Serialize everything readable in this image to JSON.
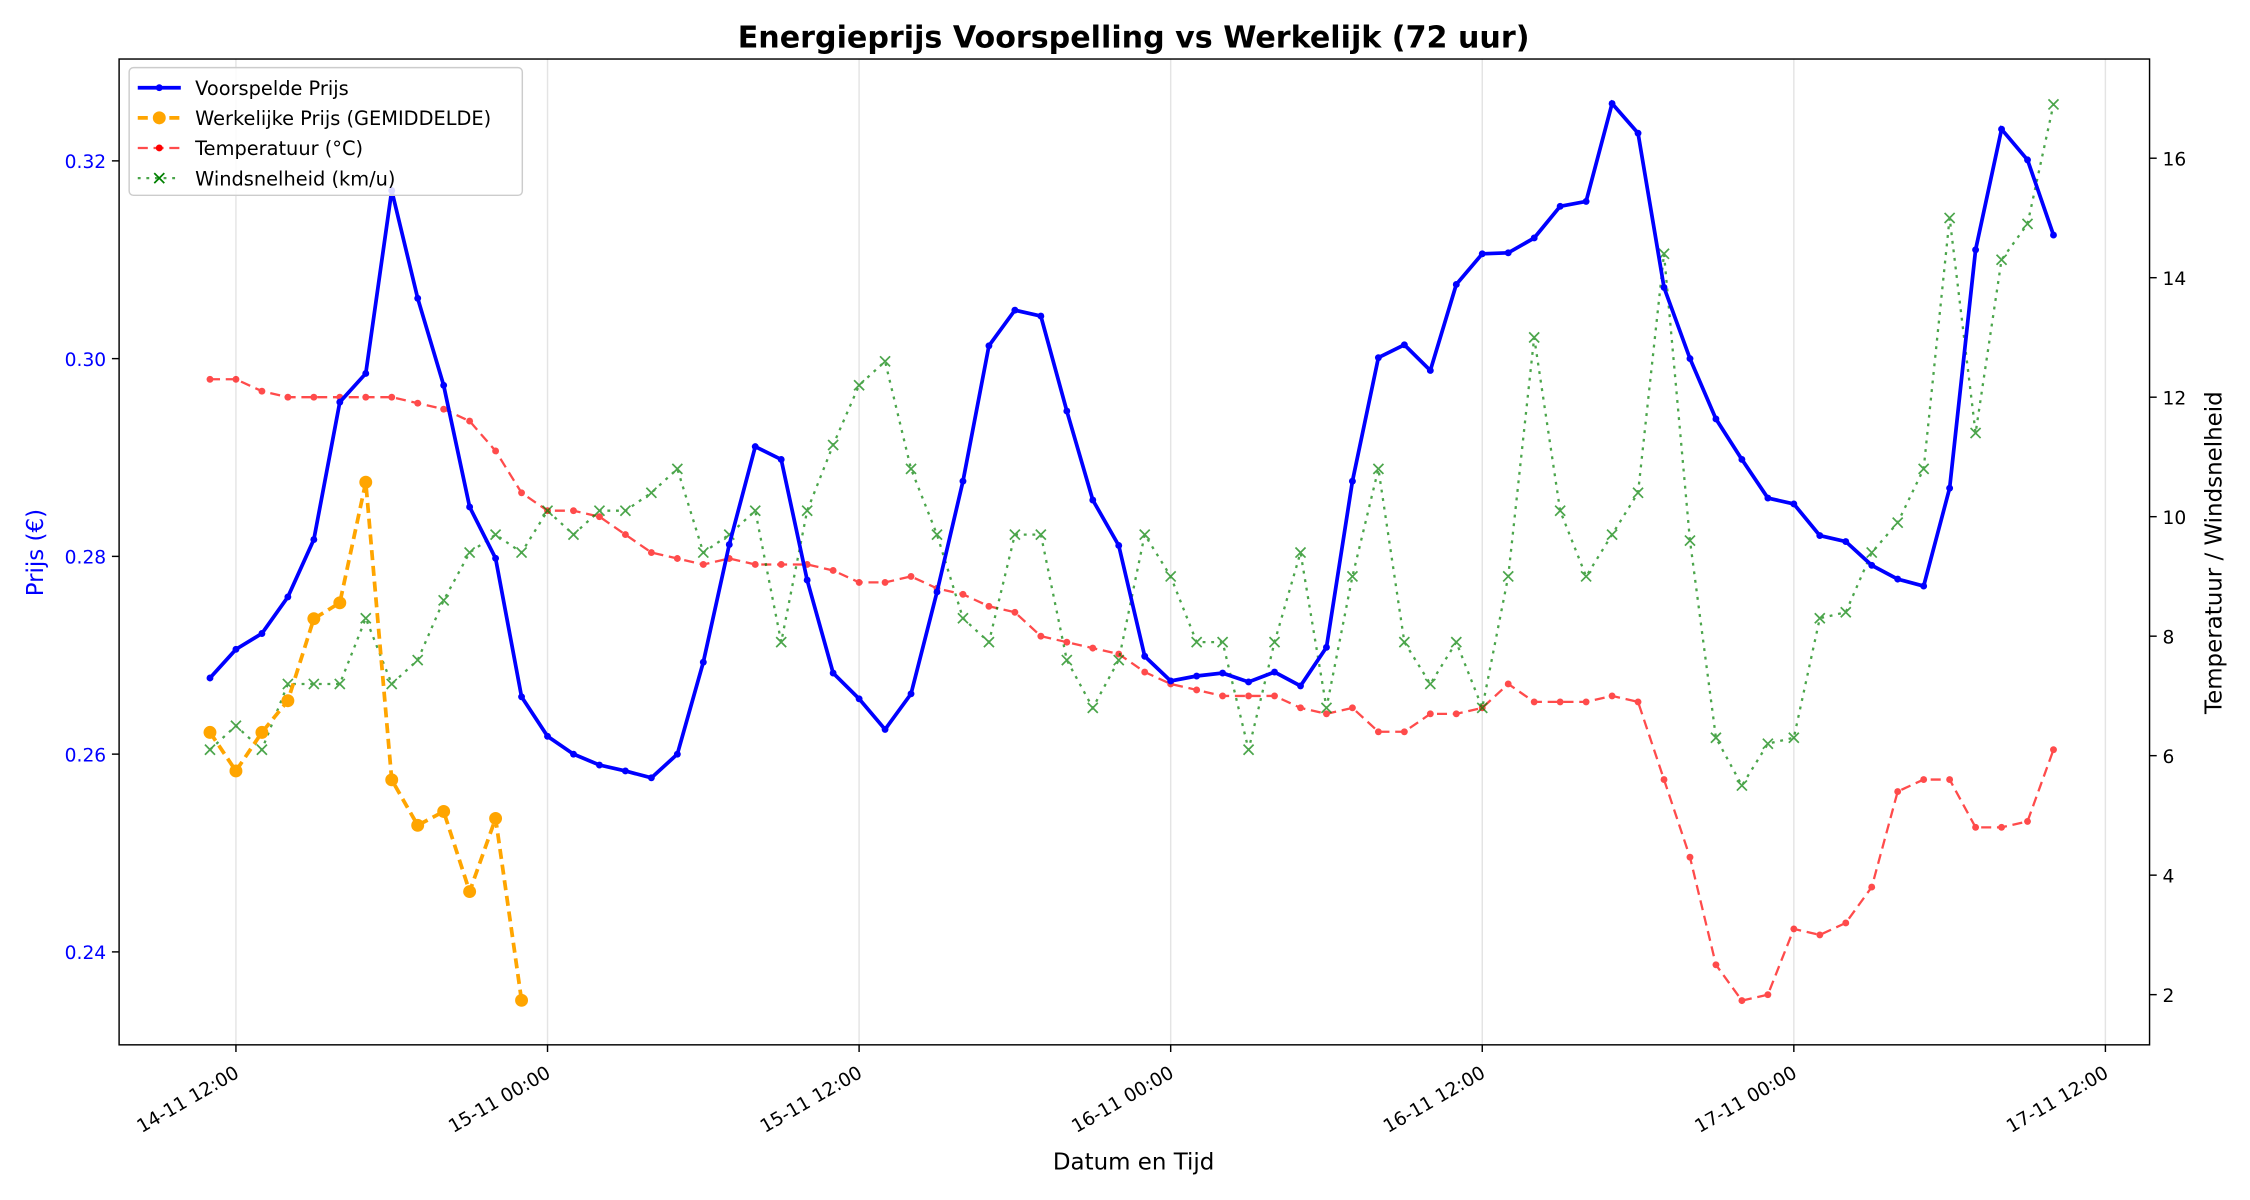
{
  "chart_data": {
    "type": "line",
    "title": "Energieprijs Voorspelling vs Werkelijk (72 uur)",
    "xlabel": "Datum en Tijd",
    "ylabel": "Prijs (€)",
    "ylabel_right": "Temperatuur / Windsnelheid",
    "x_start": "14-11 11:00",
    "x_step_hours": 1,
    "x_ticks": [
      "14-11 12:00",
      "15-11 00:00",
      "15-11 12:00",
      "16-11 00:00",
      "16-11 12:00",
      "17-11 00:00",
      "17-11 12:00"
    ],
    "x_range_hours_from_first_tick": [
      -4.5,
      73.7
    ],
    "ylim": [
      0.2306,
      0.3303
    ],
    "yticks": [
      "0.24",
      "0.26",
      "0.28",
      "0.30",
      "0.32"
    ],
    "ylim_right": [
      1.16,
      17.66
    ],
    "yticks_right": [
      "2",
      "4",
      "6",
      "8",
      "10",
      "12",
      "14",
      "16"
    ],
    "grid": "vertical",
    "legend_position": "top-left",
    "series": [
      {
        "name": "Voorspelde Prijs",
        "axis": "left",
        "color": "#0000ff",
        "style": "solid",
        "marker": "dot",
        "values": [
          0.2677,
          0.2706,
          0.2722,
          0.2759,
          0.2817,
          0.2956,
          0.2985,
          0.317,
          0.3061,
          0.2973,
          0.285,
          0.2798,
          0.2658,
          0.2618,
          0.26,
          0.2589,
          0.2583,
          0.2576,
          0.26,
          0.2693,
          0.2812,
          0.2911,
          0.2898,
          0.2776,
          0.2682,
          0.2656,
          0.2625,
          0.2661,
          0.2764,
          0.2876,
          0.3013,
          0.3049,
          0.3043,
          0.2947,
          0.2857,
          0.2811,
          0.2699,
          0.2674,
          0.2679,
          0.2682,
          0.2673,
          0.2683,
          0.2669,
          0.2708,
          0.2876,
          0.3001,
          0.3014,
          0.2988,
          0.3075,
          0.3106,
          0.3107,
          0.3122,
          0.3154,
          0.3159,
          0.3258,
          0.3228,
          0.3072,
          0.3,
          0.2939,
          0.2898,
          0.2859,
          0.2853,
          0.2821,
          0.2815,
          0.2791,
          0.2777,
          0.277,
          0.2869,
          0.311,
          0.3232,
          0.3201,
          0.3125
        ]
      },
      {
        "name": "Werkelijke Prijs (GEMIDDELDE)",
        "axis": "left",
        "color": "#ffa500",
        "style": "dashed",
        "marker": "circle",
        "values": [
          0.2622,
          0.2583,
          0.2622,
          0.2654,
          0.2737,
          0.2753,
          0.2875,
          0.2574,
          0.2528,
          0.2542,
          0.2461,
          0.2535,
          0.2351
        ]
      },
      {
        "name": "Temperatuur (°C)",
        "axis": "right",
        "color": "#ff0000",
        "style": "dashed",
        "marker": "dot",
        "values": [
          12.3,
          12.3,
          12.1,
          12.0,
          12.0,
          12.0,
          12.0,
          12.0,
          11.9,
          11.8,
          11.6,
          11.1,
          10.4,
          10.1,
          10.1,
          10.0,
          9.7,
          9.4,
          9.3,
          9.2,
          9.3,
          9.2,
          9.2,
          9.2,
          9.1,
          8.9,
          8.9,
          9.0,
          8.8,
          8.7,
          8.5,
          8.4,
          8.0,
          7.9,
          7.8,
          7.7,
          7.4,
          7.2,
          7.1,
          7.0,
          7.0,
          7.0,
          6.8,
          6.7,
          6.8,
          6.4,
          6.4,
          6.7,
          6.7,
          6.8,
          7.2,
          6.9,
          6.9,
          6.9,
          7.0,
          6.9,
          5.6,
          4.3,
          2.5,
          1.9,
          2.0,
          3.1,
          3.0,
          3.2,
          3.8,
          5.4,
          5.6,
          5.6,
          4.8,
          4.8,
          4.9,
          6.1
        ]
      },
      {
        "name": "Windsnelheid (km/u)",
        "axis": "right",
        "color": "#008000",
        "style": "dotted",
        "marker": "x",
        "values": [
          6.1,
          6.5,
          6.1,
          7.2,
          7.2,
          7.2,
          8.3,
          7.2,
          7.6,
          8.6,
          9.4,
          9.7,
          9.4,
          10.1,
          9.7,
          10.1,
          10.1,
          10.4,
          10.8,
          9.4,
          9.7,
          10.1,
          7.9,
          10.1,
          11.2,
          12.2,
          12.6,
          10.8,
          9.7,
          8.3,
          7.9,
          9.7,
          9.7,
          7.6,
          6.8,
          7.6,
          9.7,
          9.0,
          7.9,
          7.9,
          6.1,
          7.9,
          9.4,
          6.8,
          9.0,
          10.8,
          7.9,
          7.2,
          7.9,
          6.8,
          9.0,
          13.0,
          10.1,
          9.0,
          9.7,
          10.4,
          14.4,
          9.6,
          6.3,
          5.5,
          6.2,
          6.3,
          8.3,
          8.4,
          9.4,
          9.9,
          10.8,
          15.0,
          11.4,
          14.3,
          14.9,
          16.9
        ]
      }
    ]
  }
}
